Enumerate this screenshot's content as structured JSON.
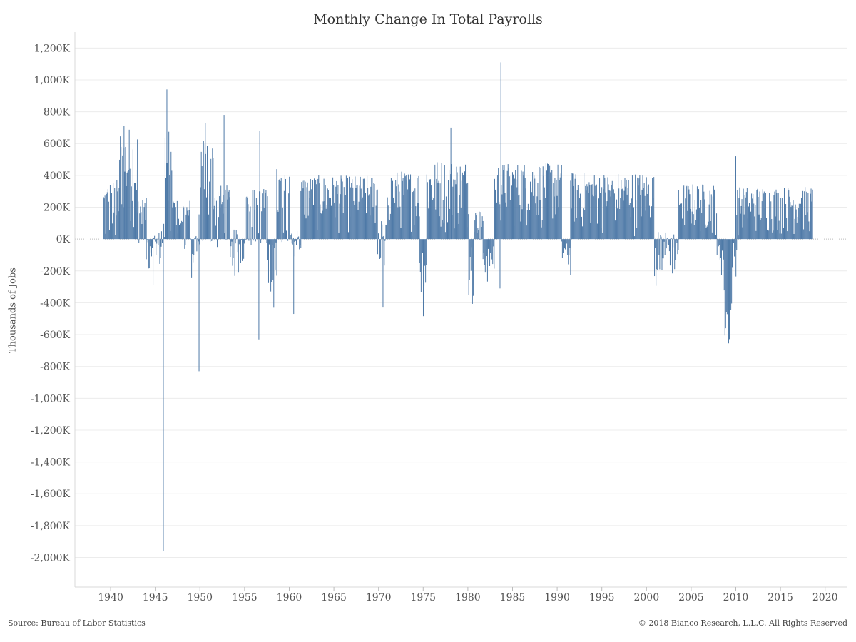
{
  "chart_data": {
    "type": "bar",
    "title": "Monthly Change In Total Payrolls",
    "xlabel": "",
    "ylabel": "Thousands of Jobs",
    "xlim": [
      1936.0,
      2022.5
    ],
    "ylim": [
      -2150,
      1300
    ],
    "y_ticks": [
      1200,
      1000,
      800,
      600,
      400,
      200,
      0,
      -200,
      -400,
      -600,
      -800,
      -1000,
      -1200,
      -1400,
      -1600,
      -1800,
      -2000
    ],
    "y_tick_labels": [
      "1,200K",
      "1,000K",
      "800K",
      "600K",
      "400K",
      "200K",
      "0K",
      "-200K",
      "-400K",
      "-600K",
      "-800K",
      "-1,000K",
      "-1,200K",
      "-1,400K",
      "-1,600K",
      "-1,800K",
      "-2,000K"
    ],
    "x_ticks": [
      1940,
      1945,
      1950,
      1955,
      1960,
      1965,
      1970,
      1975,
      1980,
      1985,
      1990,
      1995,
      2000,
      2005,
      2010,
      2015,
      2020
    ],
    "x_tick_labels": [
      "1940",
      "1945",
      "1950",
      "1955",
      "1960",
      "1965",
      "1970",
      "1975",
      "1980",
      "1985",
      "1990",
      "1995",
      "2000",
      "2005",
      "2010",
      "2015",
      "2020"
    ],
    "grid": "horizontal",
    "bar_color": "#4e79a7",
    "series": [
      {
        "period_step_years": 0.0833,
        "segments": [
          {
            "start": 1939.2,
            "end": 1941.0,
            "min": -180,
            "max": 380,
            "bias": 0.55
          },
          {
            "start": 1941.0,
            "end": 1943.0,
            "min": 50,
            "max": 710,
            "bias": 0.62
          },
          {
            "start": 1943.0,
            "end": 1944.0,
            "min": -40,
            "max": 260,
            "bias": 0.5
          },
          {
            "start": 1944.0,
            "end": 1945.7,
            "min": -400,
            "max": 50,
            "bias": 0.3
          },
          {
            "start": 1945.7,
            "end": 1946.1,
            "min": -600,
            "max": 100,
            "bias": 0.2
          },
          {
            "start": 1946.1,
            "end": 1947.2,
            "min": 0,
            "max": 720,
            "bias": 0.55
          },
          {
            "start": 1947.2,
            "end": 1948.9,
            "min": -80,
            "max": 250,
            "bias": 0.45
          },
          {
            "start": 1948.9,
            "end": 1949.9,
            "min": -350,
            "max": 20,
            "bias": 0.4
          },
          {
            "start": 1949.9,
            "end": 1951.6,
            "min": -50,
            "max": 650,
            "bias": 0.5
          },
          {
            "start": 1951.6,
            "end": 1953.4,
            "min": -50,
            "max": 340,
            "bias": 0.5
          },
          {
            "start": 1953.4,
            "end": 1954.9,
            "min": -250,
            "max": 60,
            "bias": 0.4
          },
          {
            "start": 1954.9,
            "end": 1957.6,
            "min": -40,
            "max": 320,
            "bias": 0.45
          },
          {
            "start": 1957.6,
            "end": 1958.6,
            "min": -500,
            "max": 0,
            "bias": 0.4
          },
          {
            "start": 1958.6,
            "end": 1960.3,
            "min": -30,
            "max": 450,
            "bias": 0.55
          },
          {
            "start": 1960.3,
            "end": 1961.3,
            "min": -200,
            "max": 60,
            "bias": 0.4
          },
          {
            "start": 1961.3,
            "end": 1969.9,
            "min": 0,
            "max": 400,
            "bias": 0.5
          },
          {
            "start": 1969.9,
            "end": 1971.0,
            "min": -180,
            "max": 120,
            "bias": 0.4
          },
          {
            "start": 1971.0,
            "end": 1974.6,
            "min": 0,
            "max": 430,
            "bias": 0.5
          },
          {
            "start": 1974.6,
            "end": 1975.4,
            "min": -600,
            "max": 0,
            "bias": 0.45
          },
          {
            "start": 1975.4,
            "end": 1980.1,
            "min": 0,
            "max": 500,
            "bias": 0.55
          },
          {
            "start": 1980.1,
            "end": 1980.7,
            "min": -430,
            "max": 0,
            "bias": 0.4
          },
          {
            "start": 1980.7,
            "end": 1981.7,
            "min": -20,
            "max": 180,
            "bias": 0.45
          },
          {
            "start": 1981.7,
            "end": 1983.0,
            "min": -340,
            "max": 0,
            "bias": 0.5
          },
          {
            "start": 1983.0,
            "end": 1990.5,
            "min": 0,
            "max": 480,
            "bias": 0.45
          },
          {
            "start": 1990.5,
            "end": 1991.5,
            "min": -300,
            "max": 0,
            "bias": 0.45
          },
          {
            "start": 1991.5,
            "end": 2000.9,
            "min": 0,
            "max": 420,
            "bias": 0.5
          },
          {
            "start": 2000.9,
            "end": 2003.6,
            "min": -330,
            "max": 50,
            "bias": 0.4
          },
          {
            "start": 2003.6,
            "end": 2007.9,
            "min": 0,
            "max": 350,
            "bias": 0.55
          },
          {
            "start": 2007.9,
            "end": 2008.7,
            "min": -300,
            "max": 0,
            "bias": 0.45
          },
          {
            "start": 2008.7,
            "end": 2009.6,
            "min": -800,
            "max": -300,
            "bias": 0.55
          },
          {
            "start": 2009.6,
            "end": 2010.1,
            "min": -250,
            "max": 0,
            "bias": 0.5
          },
          {
            "start": 2010.1,
            "end": 2018.6,
            "min": 0,
            "max": 330,
            "bias": 0.55
          }
        ],
        "spikes": [
          {
            "x": 1945.9,
            "value": -1960
          },
          {
            "x": 1946.3,
            "value": 940
          },
          {
            "x": 1949.9,
            "value": -830
          },
          {
            "x": 1950.6,
            "value": 730
          },
          {
            "x": 1952.7,
            "value": 780
          },
          {
            "x": 1956.7,
            "value": 680
          },
          {
            "x": 1956.6,
            "value": -630
          },
          {
            "x": 1978.1,
            "value": 700
          },
          {
            "x": 1983.7,
            "value": 1110
          },
          {
            "x": 1983.6,
            "value": -310
          },
          {
            "x": 2010.0,
            "value": 520
          },
          {
            "x": 1941.5,
            "value": 710
          },
          {
            "x": 1960.5,
            "value": -470
          },
          {
            "x": 1970.5,
            "value": -430
          }
        ]
      }
    ]
  },
  "source_text": "Source: Bureau of Labor Statistics",
  "copyright_text": "© 2018 Bianco Research, L.L.C. All Rights Reserved"
}
